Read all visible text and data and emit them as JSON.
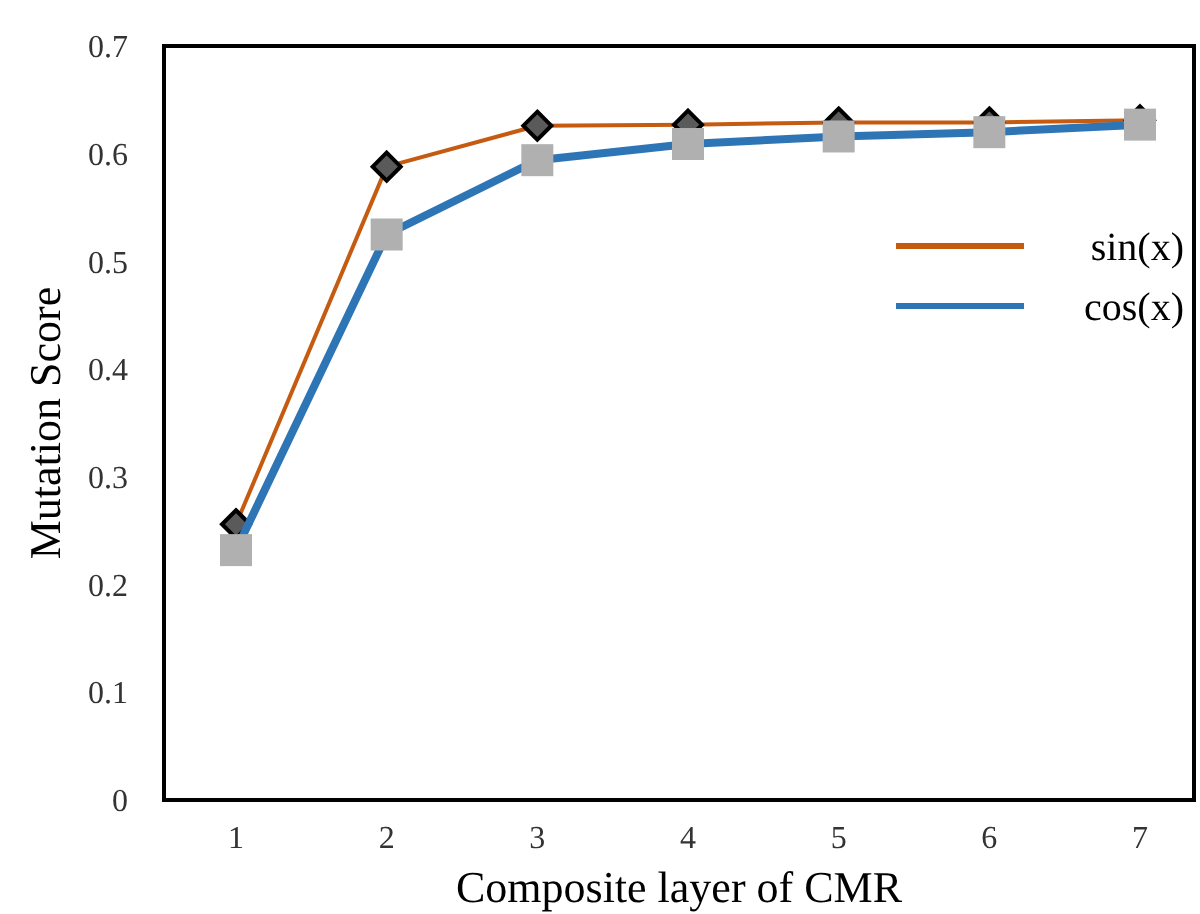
{
  "chart_data": {
    "type": "line",
    "xlabel": "Composite layer of CMR",
    "ylabel": "Mutation Score",
    "categories": [
      "1",
      "2",
      "3",
      "4",
      "5",
      "6",
      "7"
    ],
    "ylim": [
      0,
      0.7
    ],
    "yticks": [
      0,
      0.1,
      0.2,
      0.3,
      0.4,
      0.5,
      0.6,
      0.7
    ],
    "grid": false,
    "legend": "right",
    "series": [
      {
        "name": "sin(x)",
        "color": "#c55a11",
        "marker": "diamond",
        "values": [
          0.256,
          0.588,
          0.626,
          0.627,
          0.629,
          0.629,
          0.631
        ]
      },
      {
        "name": "cos(x)",
        "color": "#2e75b6",
        "marker": "square",
        "values": [
          0.232,
          0.525,
          0.594,
          0.609,
          0.616,
          0.62,
          0.627
        ]
      }
    ]
  }
}
